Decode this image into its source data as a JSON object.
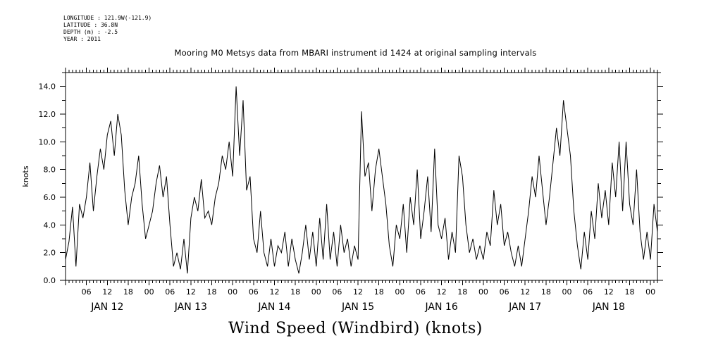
{
  "header": {
    "meta_lines": [
      "LONGITUDE : 121.9W(-121.9)",
      "LATITUDE : 36.8N",
      "DEPTH (m) : -2.5",
      "YEAR : 2011"
    ]
  },
  "chart_data": {
    "type": "line",
    "title": "Mooring M0 Metsys data from MBARI instrument id 1424 at original sampling intervals",
    "bottom_title": "Wind Speed (Windbird) (knots)",
    "ylabel": "knots",
    "xlabel": "",
    "ylim": [
      0,
      15
    ],
    "yticks": [
      "0.0",
      "2.0",
      "4.0",
      "6.0",
      "8.0",
      "10.0",
      "12.0",
      "14.0"
    ],
    "xlim_hours": [
      0,
      170
    ],
    "hour_tick_labels": [
      "06",
      "12",
      "18",
      "00",
      "06",
      "12",
      "18",
      "00",
      "06",
      "12",
      "18",
      "00",
      "06",
      "12",
      "18",
      "00",
      "06",
      "12",
      "18",
      "00",
      "06",
      "12",
      "18",
      "00",
      "06",
      "12",
      "18",
      "00"
    ],
    "day_labels": [
      "JAN 12",
      "JAN 13",
      "JAN 14",
      "JAN 15",
      "JAN 16",
      "JAN 17",
      "JAN 18"
    ],
    "grid": false,
    "series": [
      {
        "color": "#000000",
        "points": [
          [
            0,
            1.5
          ],
          [
            1,
            2.8
          ],
          [
            2,
            5.3
          ],
          [
            3,
            1.0
          ],
          [
            4,
            5.5
          ],
          [
            5,
            4.5
          ],
          [
            6,
            6.0
          ],
          [
            7,
            8.5
          ],
          [
            8,
            5.0
          ],
          [
            9,
            7.5
          ],
          [
            10,
            9.5
          ],
          [
            11,
            8.0
          ],
          [
            12,
            10.5
          ],
          [
            13,
            11.5
          ],
          [
            14,
            9.0
          ],
          [
            15,
            12.0
          ],
          [
            16,
            10.5
          ],
          [
            17,
            6.5
          ],
          [
            18,
            4.0
          ],
          [
            19,
            6.0
          ],
          [
            20,
            7.0
          ],
          [
            21,
            9.0
          ],
          [
            22,
            5.5
          ],
          [
            23,
            3.0
          ],
          [
            24,
            4.0
          ],
          [
            25,
            5.0
          ],
          [
            26,
            7.0
          ],
          [
            27,
            8.3
          ],
          [
            28,
            6.0
          ],
          [
            29,
            7.5
          ],
          [
            30,
            4.0
          ],
          [
            31,
            1.0
          ],
          [
            32,
            2.0
          ],
          [
            33,
            0.8
          ],
          [
            34,
            3.0
          ],
          [
            35,
            0.5
          ],
          [
            36,
            4.5
          ],
          [
            37,
            6.0
          ],
          [
            38,
            5.0
          ],
          [
            39,
            7.3
          ],
          [
            40,
            4.5
          ],
          [
            41,
            5.0
          ],
          [
            42,
            4.0
          ],
          [
            43,
            6.0
          ],
          [
            44,
            7.0
          ],
          [
            45,
            9.0
          ],
          [
            46,
            8.0
          ],
          [
            47,
            10.0
          ],
          [
            48,
            7.5
          ],
          [
            49,
            14.0
          ],
          [
            50,
            9.0
          ],
          [
            51,
            13.0
          ],
          [
            52,
            6.5
          ],
          [
            53,
            7.5
          ],
          [
            54,
            3.0
          ],
          [
            55,
            2.0
          ],
          [
            56,
            5.0
          ],
          [
            57,
            2.0
          ],
          [
            58,
            1.0
          ],
          [
            59,
            3.0
          ],
          [
            60,
            1.0
          ],
          [
            61,
            2.5
          ],
          [
            62,
            2.0
          ],
          [
            63,
            3.5
          ],
          [
            64,
            1.0
          ],
          [
            65,
            3.0
          ],
          [
            66,
            1.5
          ],
          [
            67,
            0.5
          ],
          [
            68,
            2.0
          ],
          [
            69,
            4.0
          ],
          [
            70,
            1.5
          ],
          [
            71,
            3.5
          ],
          [
            72,
            1.0
          ],
          [
            73,
            4.5
          ],
          [
            74,
            1.5
          ],
          [
            75,
            5.5
          ],
          [
            76,
            1.5
          ],
          [
            77,
            3.5
          ],
          [
            78,
            1.0
          ],
          [
            79,
            4.0
          ],
          [
            80,
            2.0
          ],
          [
            81,
            3.0
          ],
          [
            82,
            1.0
          ],
          [
            83,
            2.5
          ],
          [
            84,
            1.5
          ],
          [
            85,
            12.2
          ],
          [
            86,
            7.5
          ],
          [
            87,
            8.5
          ],
          [
            88,
            5.0
          ],
          [
            89,
            8.0
          ],
          [
            90,
            9.5
          ],
          [
            91,
            7.5
          ],
          [
            92,
            5.5
          ],
          [
            93,
            2.5
          ],
          [
            94,
            1.0
          ],
          [
            95,
            4.0
          ],
          [
            96,
            3.0
          ],
          [
            97,
            5.5
          ],
          [
            98,
            2.0
          ],
          [
            99,
            6.0
          ],
          [
            100,
            4.0
          ],
          [
            101,
            8.0
          ],
          [
            102,
            3.0
          ],
          [
            103,
            5.0
          ],
          [
            104,
            7.5
          ],
          [
            105,
            3.5
          ],
          [
            106,
            9.5
          ],
          [
            107,
            4.0
          ],
          [
            108,
            3.0
          ],
          [
            109,
            4.5
          ],
          [
            110,
            1.5
          ],
          [
            111,
            3.5
          ],
          [
            112,
            2.0
          ],
          [
            113,
            9.0
          ],
          [
            114,
            7.5
          ],
          [
            115,
            4.0
          ],
          [
            116,
            2.0
          ],
          [
            117,
            3.0
          ],
          [
            118,
            1.5
          ],
          [
            119,
            2.5
          ],
          [
            120,
            1.5
          ],
          [
            121,
            3.5
          ],
          [
            122,
            2.5
          ],
          [
            123,
            6.5
          ],
          [
            124,
            4.0
          ],
          [
            125,
            5.5
          ],
          [
            126,
            2.5
          ],
          [
            127,
            3.5
          ],
          [
            128,
            2.0
          ],
          [
            129,
            1.0
          ],
          [
            130,
            2.5
          ],
          [
            131,
            1.0
          ],
          [
            132,
            3.0
          ],
          [
            133,
            5.0
          ],
          [
            134,
            7.5
          ],
          [
            135,
            6.0
          ],
          [
            136,
            9.0
          ],
          [
            137,
            6.5
          ],
          [
            138,
            4.0
          ],
          [
            139,
            6.0
          ],
          [
            140,
            8.5
          ],
          [
            141,
            11.0
          ],
          [
            142,
            9.0
          ],
          [
            143,
            13.0
          ],
          [
            144,
            11.0
          ],
          [
            145,
            9.0
          ],
          [
            146,
            5.0
          ],
          [
            147,
            2.5
          ],
          [
            148,
            0.8
          ],
          [
            149,
            3.5
          ],
          [
            150,
            1.5
          ],
          [
            151,
            5.0
          ],
          [
            152,
            3.0
          ],
          [
            153,
            7.0
          ],
          [
            154,
            4.5
          ],
          [
            155,
            6.5
          ],
          [
            156,
            4.0
          ],
          [
            157,
            8.5
          ],
          [
            158,
            6.0
          ],
          [
            159,
            10.0
          ],
          [
            160,
            5.0
          ],
          [
            161,
            10.0
          ],
          [
            162,
            5.5
          ],
          [
            163,
            4.0
          ],
          [
            164,
            8.0
          ],
          [
            165,
            3.5
          ],
          [
            166,
            1.5
          ],
          [
            167,
            3.5
          ],
          [
            168,
            1.5
          ],
          [
            169,
            5.5
          ],
          [
            170,
            3.5
          ]
        ]
      }
    ]
  }
}
